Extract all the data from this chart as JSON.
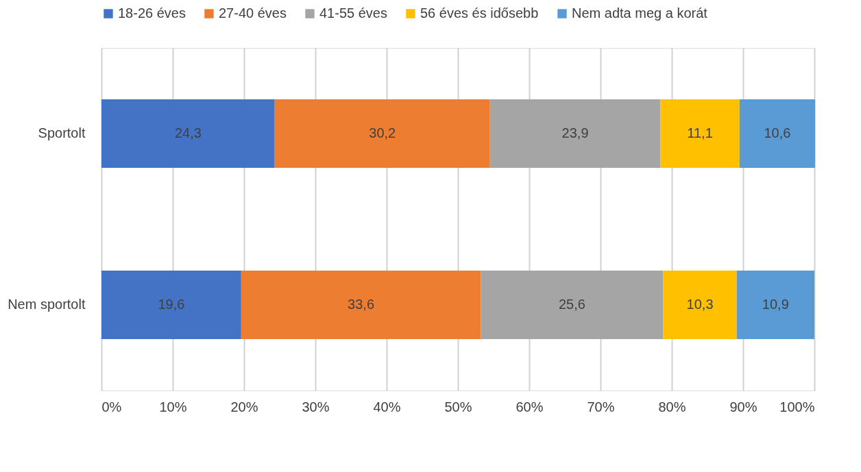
{
  "chart_data": {
    "type": "bar",
    "orientation": "horizontal",
    "stacked": true,
    "categories": [
      "Sportolt",
      "Nem sportolt"
    ],
    "series": [
      {
        "name": "18-26 éves",
        "color": "#4472c4",
        "values": [
          24.3,
          19.6
        ],
        "value_labels": [
          "24,3",
          "19,6"
        ]
      },
      {
        "name": "27-40 éves",
        "color": "#ed7d31",
        "values": [
          30.2,
          33.6
        ],
        "value_labels": [
          "30,2",
          "33,6"
        ]
      },
      {
        "name": "41-55 éves",
        "color": "#a5a5a5",
        "values": [
          23.9,
          25.6
        ],
        "value_labels": [
          "23,9",
          "25,6"
        ]
      },
      {
        "name": "56 éves és idősebb",
        "color": "#ffc000",
        "values": [
          11.1,
          10.3
        ],
        "value_labels": [
          "11,1",
          "10,3"
        ]
      },
      {
        "name": "Nem adta meg a korát",
        "color": "#5b9bd5",
        "values": [
          10.6,
          10.9
        ],
        "value_labels": [
          "10,6",
          "10,9"
        ]
      }
    ],
    "xlim": [
      0,
      100
    ],
    "xticks": [
      {
        "value": 0,
        "label": "0%"
      },
      {
        "value": 10,
        "label": "10%"
      },
      {
        "value": 20,
        "label": "20%"
      },
      {
        "value": 30,
        "label": "30%"
      },
      {
        "value": 40,
        "label": "40%"
      },
      {
        "value": 50,
        "label": "50%"
      },
      {
        "value": 60,
        "label": "60%"
      },
      {
        "value": 70,
        "label": "70%"
      },
      {
        "value": 80,
        "label": "80%"
      },
      {
        "value": 90,
        "label": "90%"
      },
      {
        "value": 100,
        "label": "100%"
      }
    ],
    "grid": "x",
    "legend": "top"
  }
}
